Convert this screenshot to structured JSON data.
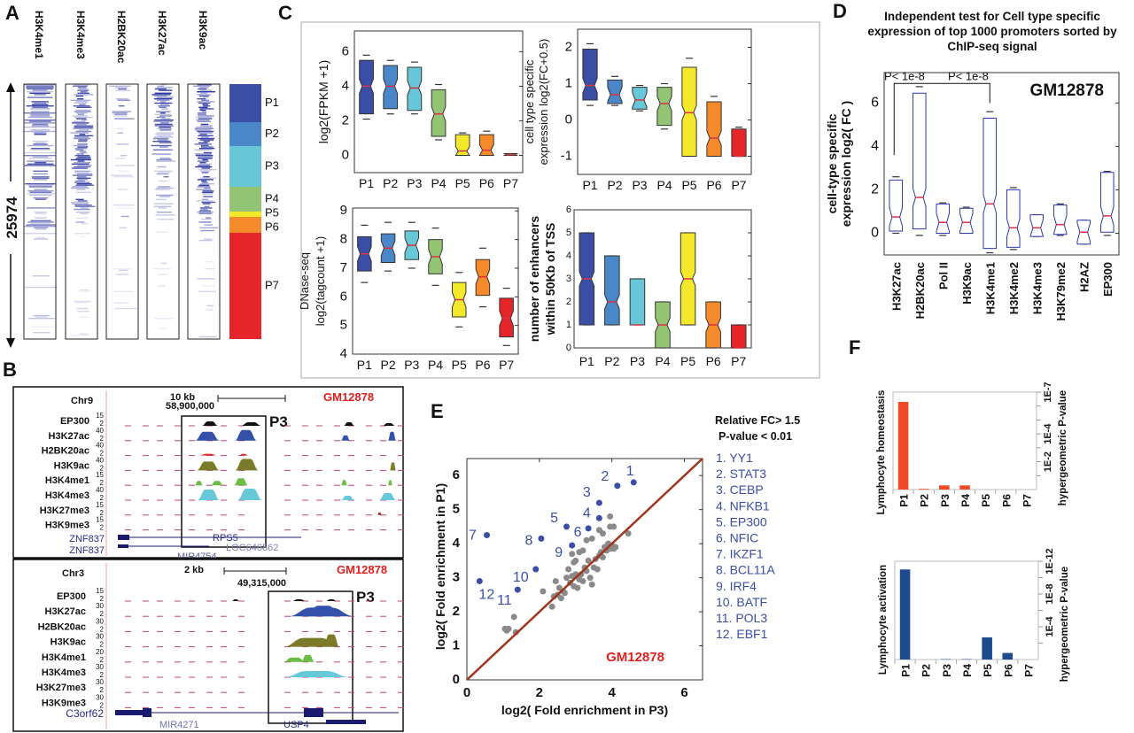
{
  "panel_labels": {
    "A": "A",
    "B": "B",
    "C": "C",
    "D": "D",
    "E": "E",
    "F": "F"
  },
  "colors": {
    "P1": "#3a4ea6",
    "P2": "#4a87c9",
    "P3": "#68c7d6",
    "P4": "#92c474",
    "P5": "#f3e82a",
    "P6": "#f48a2a",
    "P7": "#e6252a",
    "heatmap": "#2b35a0",
    "highlight_red": "#e02020",
    "tf_blue": "#3a4ea6",
    "diag": "#a0341c"
  },
  "panel_A": {
    "columns": [
      "H3K4me1",
      "H3K4me3",
      "H2BK20ac",
      "H3K27ac",
      "H3K9ac"
    ],
    "row_count_label": "25974",
    "clusters": [
      "P1",
      "P2",
      "P3",
      "P4",
      "P5",
      "P6",
      "P7"
    ]
  },
  "panel_B": {
    "top": {
      "chrom": "Chr9",
      "scale": "10 kb",
      "position": "58,900,000",
      "box_label": "P3",
      "cell": "GM12878",
      "tracks": [
        {
          "name": "EP300",
          "max": "15",
          "min": "2"
        },
        {
          "name": "H3K27ac",
          "max": "40",
          "min": "2"
        },
        {
          "name": "H2BK20ac",
          "max": "40",
          "min": "2"
        },
        {
          "name": "H3K9ac",
          "max": "40",
          "min": "2"
        },
        {
          "name": "H3K4me1",
          "max": "15",
          "min": "2"
        },
        {
          "name": "H3K4me3",
          "max": "40",
          "min": "2"
        },
        {
          "name": "H3K27me3",
          "max": "15",
          "min": "2"
        },
        {
          "name": "H3K9me3",
          "max": "15",
          "min": "2"
        }
      ],
      "genes": [
        "ZNF837",
        "ZNF837"
      ],
      "gene_labels": [
        "RPS5",
        "LOC646862",
        "MIR4754"
      ]
    },
    "bottom": {
      "chrom": "Chr3",
      "scale": "2 kb",
      "position": "49,315,000",
      "box_label": "P3",
      "cell": "GM12878",
      "tracks": [
        {
          "name": "EP300",
          "max": "15",
          "min": "2"
        },
        {
          "name": "H3K27ac",
          "max": "30",
          "min": "2"
        },
        {
          "name": "H2BK20ac",
          "max": "30",
          "min": "2"
        },
        {
          "name": "H3K9ac",
          "max": "30",
          "min": "2"
        },
        {
          "name": "H3K4me1",
          "max": "20",
          "min": "2"
        },
        {
          "name": "H3K4me3",
          "max": "30",
          "min": "2"
        },
        {
          "name": "H3K27me3",
          "max": "30",
          "min": "2"
        },
        {
          "name": "H3K9me3",
          "max": "30",
          "min": "2"
        }
      ],
      "genes": [
        "C3orf62"
      ],
      "gene_labels": [
        "MIR4271",
        "USP4"
      ]
    }
  },
  "panel_D": {
    "title": "Independent test for Cell type specific expression of top 1000 promoters sorted by ChIP-seq signal"
  },
  "chart_data": [
    {
      "id": "C1",
      "type": "boxplot",
      "categories": [
        "P1",
        "P2",
        "P3",
        "P4",
        "P5",
        "P6",
        "P7"
      ],
      "ylabel": [
        "log2(FPKM +1)"
      ],
      "ylim": [
        -1,
        7.2
      ],
      "yticks": [
        0,
        2,
        4,
        6
      ],
      "stat_order": [
        "whisker_low",
        "q1",
        "median",
        "q3",
        "whisker_high"
      ],
      "stats": [
        [
          2.1,
          2.4,
          4.0,
          5.5,
          5.8
        ],
        [
          2.4,
          2.7,
          4.0,
          5.2,
          5.5
        ],
        [
          2.4,
          2.6,
          3.9,
          5.1,
          5.4
        ],
        [
          0.9,
          1.1,
          2.4,
          3.8,
          4.1
        ],
        [
          0,
          0,
          0.25,
          1.2,
          1.3
        ],
        [
          0,
          0,
          0.3,
          1.2,
          1.4
        ],
        [
          0,
          0,
          0.05,
          0.1,
          0.1
        ]
      ]
    },
    {
      "id": "C2",
      "type": "boxplot",
      "categories": [
        "P1",
        "P2",
        "P3",
        "P4",
        "P5",
        "P6",
        "P7"
      ],
      "ylabel": [
        "cell type specific",
        "expression log2(FC+0.5)"
      ],
      "ylim": [
        -1.5,
        2.5
      ],
      "yticks": [
        -1,
        0,
        1,
        2
      ],
      "stat_order": [
        "whisker_low",
        "q1",
        "median",
        "q3",
        "whisker_high"
      ],
      "stats": [
        [
          0.4,
          0.55,
          0.95,
          1.95,
          2.1
        ],
        [
          0.4,
          0.45,
          0.7,
          1.1,
          1.2
        ],
        [
          0.25,
          0.3,
          0.55,
          0.9,
          0.95
        ],
        [
          -0.25,
          -0.15,
          0.45,
          0.9,
          1.0
        ],
        [
          -1,
          -1,
          0.2,
          1.45,
          1.7
        ],
        [
          -1,
          -1,
          -0.5,
          0.5,
          0.65
        ],
        [
          -1,
          -1,
          -1,
          -0.25,
          -0.2
        ]
      ]
    },
    {
      "id": "C3",
      "type": "boxplot",
      "categories": [
        "P1",
        "P2",
        "P3",
        "P4",
        "P5",
        "P6",
        "P7"
      ],
      "ylabel": [
        "DNase-seq",
        "log2(tagcount +1)"
      ],
      "ylim": [
        4,
        9.1
      ],
      "yticks": [
        4,
        5,
        6,
        7,
        8,
        9
      ],
      "stat_order": [
        "whisker_low",
        "q1",
        "median",
        "q3",
        "whisker_high"
      ],
      "stats": [
        [
          6.5,
          6.9,
          7.5,
          8.1,
          8.5
        ],
        [
          6.9,
          7.2,
          7.7,
          8.2,
          8.6
        ],
        [
          7.0,
          7.3,
          7.8,
          8.3,
          8.6
        ],
        [
          6.4,
          6.8,
          7.4,
          8.0,
          8.4
        ],
        [
          4.95,
          5.3,
          5.9,
          6.5,
          6.85
        ],
        [
          5.65,
          6.05,
          6.7,
          7.3,
          7.7
        ],
        [
          4.3,
          4.6,
          5.25,
          5.95,
          6.3
        ]
      ]
    },
    {
      "id": "C4",
      "type": "boxplot",
      "categories": [
        "P1",
        "P2",
        "P3",
        "P4",
        "P5",
        "P6",
        "P7"
      ],
      "ylabel": [
        "number of enhancers",
        "within 50Kb of TSS"
      ],
      "ylim": [
        0,
        6
      ],
      "yticks": [
        0,
        1,
        2,
        3,
        4,
        5,
        6
      ],
      "stat_order": [
        "whisker_low",
        "q1",
        "median",
        "q3",
        "whisker_high"
      ],
      "stats": [
        [
          1,
          1,
          3,
          5,
          5
        ],
        [
          1,
          1,
          2,
          4,
          4
        ],
        [
          1,
          1,
          1,
          3,
          3
        ],
        [
          0,
          0,
          1,
          2,
          2
        ],
        [
          1,
          1,
          3,
          5,
          5
        ],
        [
          0,
          0,
          1,
          2,
          2
        ],
        [
          0,
          0,
          0,
          1,
          1
        ]
      ]
    },
    {
      "id": "D",
      "type": "boxplot",
      "categories": [
        "H3K27ac",
        "H2BK20ac",
        "Pol II",
        "H3K9ac",
        "H3K4me1",
        "H3K4me2",
        "H3K4me3",
        "H3K79me2",
        "H2AZ",
        "EP300"
      ],
      "ylabel": [
        "cell-type specific",
        "expression log2( FC )"
      ],
      "ylim": [
        -1,
        7.4
      ],
      "yticks": [
        0,
        2,
        4,
        6
      ],
      "annotations": [
        "P< 1e-8",
        "P< 1e-8"
      ],
      "cell": "GM12878",
      "stat_order": [
        "whisker_low",
        "q1",
        "median",
        "q3",
        "whisker_high"
      ],
      "stats": [
        [
          0,
          0.1,
          0.75,
          2.45,
          2.6
        ],
        [
          -0.1,
          0.2,
          1.65,
          6.45,
          6.75
        ],
        [
          -0.1,
          0,
          0.5,
          1.35,
          1.4
        ],
        [
          0,
          0,
          0.5,
          1.15,
          1.2
        ],
        [
          -0.9,
          -0.7,
          1.35,
          5.3,
          5.6
        ],
        [
          -0.75,
          -0.65,
          0.25,
          2.0,
          2.1
        ],
        [
          -0.15,
          -0.15,
          0.25,
          0.85,
          0.85
        ],
        [
          -0.1,
          -0.05,
          0.4,
          1.3,
          1.35
        ],
        [
          -0.5,
          -0.5,
          0.05,
          0.6,
          0.6
        ],
        [
          -0.1,
          0.05,
          0.8,
          2.8,
          2.85
        ]
      ]
    },
    {
      "id": "E",
      "type": "scatter",
      "xlabel": "log2( Fold enrichment in P3)",
      "ylabel": "log2( Fold enrichment in P1)",
      "xlim": [
        0,
        6.5
      ],
      "ylim": [
        0,
        6.5
      ],
      "xticks": [
        0,
        2,
        4,
        6
      ],
      "yticks": [
        0,
        1,
        2,
        3,
        4,
        5,
        6
      ],
      "cell": "GM12878",
      "legend_title": [
        "Relative FC> 1.5",
        "P-value < 0.01"
      ],
      "highlighted": [
        {
          "n": "1",
          "name": "YY1",
          "x": 4.6,
          "y": 5.8
        },
        {
          "n": "2",
          "name": "STAT3",
          "x": 4.15,
          "y": 5.7
        },
        {
          "n": "3",
          "name": "CEBP",
          "x": 3.65,
          "y": 5.2
        },
        {
          "n": "4",
          "name": "NFKB1",
          "x": 3.65,
          "y": 4.75
        },
        {
          "n": "5",
          "name": "EP300",
          "x": 2.75,
          "y": 4.5
        },
        {
          "n": "6",
          "name": "NFIC",
          "x": 3.35,
          "y": 4.45
        },
        {
          "n": "7",
          "name": "IKZF1",
          "x": 0.55,
          "y": 4.25
        },
        {
          "n": "8",
          "name": "BCL11A",
          "x": 2.05,
          "y": 4.15
        },
        {
          "n": "9",
          "name": "IRF4",
          "x": 2.9,
          "y": 3.95
        },
        {
          "n": "10",
          "name": "BATF",
          "x": 1.9,
          "y": 3.25
        },
        {
          "n": "11",
          "name": "POL3",
          "x": 1.4,
          "y": 2.65
        },
        {
          "n": "12",
          "name": "EBF1",
          "x": 0.35,
          "y": 2.9
        }
      ],
      "other_points": [
        [
          1.05,
          1.5
        ],
        [
          1.15,
          1.5
        ],
        [
          1.1,
          1.45
        ],
        [
          1.3,
          1.85
        ],
        [
          1.35,
          1.4
        ],
        [
          2.1,
          2.6
        ],
        [
          2.35,
          2.15
        ],
        [
          2.4,
          2.45
        ],
        [
          2.45,
          2.9
        ],
        [
          2.5,
          2.5
        ],
        [
          2.55,
          2.7
        ],
        [
          2.6,
          2.4
        ],
        [
          2.65,
          2.6
        ],
        [
          2.7,
          2.55
        ],
        [
          2.75,
          3.0
        ],
        [
          2.8,
          3.25
        ],
        [
          2.85,
          2.85
        ],
        [
          2.9,
          3.05
        ],
        [
          2.95,
          2.75
        ],
        [
          3.0,
          3.1
        ],
        [
          3.05,
          2.7
        ],
        [
          3.1,
          2.95
        ],
        [
          3.15,
          3.1
        ],
        [
          3.2,
          2.9
        ],
        [
          3.25,
          3.3
        ],
        [
          3.3,
          3.2
        ],
        [
          3.35,
          3.5
        ],
        [
          3.4,
          3.0
        ],
        [
          3.45,
          2.8
        ],
        [
          3.5,
          3.3
        ],
        [
          3.55,
          3.55
        ],
        [
          3.6,
          3.25
        ],
        [
          3.65,
          3.65
        ],
        [
          3.7,
          3.75
        ],
        [
          3.75,
          3.6
        ],
        [
          3.8,
          3.9
        ],
        [
          3.85,
          3.8
        ],
        [
          3.9,
          4.0
        ],
        [
          3.95,
          3.85
        ],
        [
          4.0,
          3.95
        ],
        [
          4.05,
          3.85
        ],
        [
          4.1,
          3.9
        ],
        [
          3.0,
          3.5
        ],
        [
          3.1,
          3.75
        ],
        [
          3.2,
          3.8
        ],
        [
          3.3,
          4.1
        ],
        [
          3.45,
          4.15
        ],
        [
          3.65,
          4.4
        ],
        [
          3.75,
          4.3
        ],
        [
          3.95,
          4.5
        ],
        [
          4.05,
          4.5
        ],
        [
          3.95,
          4.8
        ],
        [
          4.45,
          4.3
        ],
        [
          2.9,
          3.7
        ],
        [
          2.95,
          3.45
        ]
      ]
    },
    {
      "id": "F1",
      "type": "bar",
      "title": "Lymphocyte homeostasis",
      "ylabel": "hypergeometric P-value",
      "categories": [
        "P1",
        "P2",
        "P3",
        "P4",
        "P5",
        "P6",
        "P7"
      ],
      "values_neg_log10": [
        6.3,
        0.05,
        0.3,
        0.3,
        0,
        0,
        0
      ],
      "ylim": [
        0,
        7
      ],
      "yticks": [
        1,
        2,
        3,
        4,
        5,
        6,
        7
      ],
      "ytick_labels": {
        "2": "1E-2",
        "4": "1E-4",
        "7": "1E-7"
      },
      "color": "#f04a25"
    },
    {
      "id": "F2",
      "type": "bar",
      "title": "Lymphocyte activation",
      "ylabel": "hypergeometric P-value",
      "categories": [
        "P1",
        "P2",
        "P3",
        "P4",
        "P5",
        "P6",
        "P7"
      ],
      "values_neg_log10": [
        11.0,
        0,
        0.05,
        0.05,
        2.7,
        0.8,
        0
      ],
      "ylim": [
        0,
        12
      ],
      "yticks": [
        2,
        4,
        6,
        8,
        10,
        12
      ],
      "ytick_labels": {
        "4": "1E-4",
        "8": "1E-8",
        "12": "1E-12"
      },
      "color": "#1e4a8e"
    }
  ]
}
